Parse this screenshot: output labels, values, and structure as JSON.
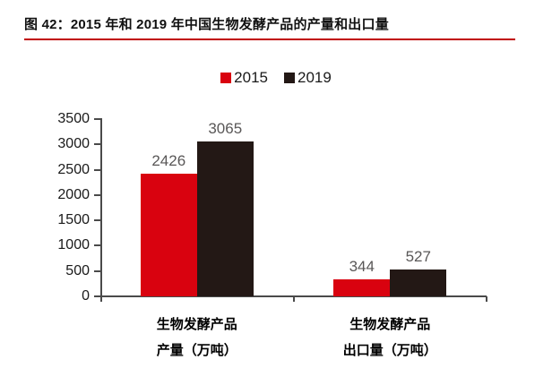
{
  "figure": {
    "title": "图 42：2015 年和 2019 年中国生物发酵产品的产量和出口量",
    "underline_color": "#c00000",
    "background_color": "#ffffff"
  },
  "chart_data": {
    "type": "bar",
    "title": "2015 年和 2019 年中国生物发酵产品的产量和出口量",
    "categories": [
      [
        "生物发酵产品",
        "产量（万吨）"
      ],
      [
        "生物发酵产品",
        "出口量（万吨）"
      ]
    ],
    "series": [
      {
        "name": "2015",
        "color": "#d9020f",
        "values": [
          2426,
          344
        ]
      },
      {
        "name": "2019",
        "color": "#231815",
        "values": [
          3065,
          527
        ]
      }
    ],
    "value_labels": [
      "2426",
      "3065",
      "344",
      "527"
    ],
    "ylabel": "",
    "xlabel": "",
    "ylim": [
      0,
      3500
    ],
    "yticks": [
      0,
      500,
      1000,
      1500,
      2000,
      2500,
      3000,
      3500
    ],
    "grid": false,
    "legend_position": "top",
    "value_label_color": "#595757",
    "axis_color": "#4a4a4a"
  }
}
